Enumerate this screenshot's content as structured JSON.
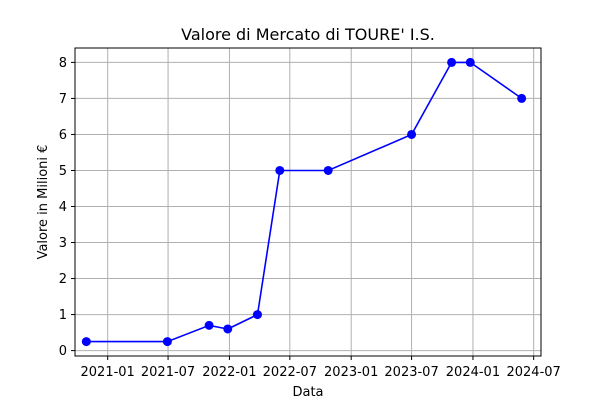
{
  "chart_data": {
    "type": "line",
    "title": "Valore di Mercato di TOURE' I.S.",
    "xlabel": "Data",
    "ylabel": "Valore in Milioni €",
    "grid": true,
    "x_tick_labels": [
      "2021-01",
      "2021-07",
      "2022-01",
      "2022-07",
      "2023-01",
      "2023-07",
      "2024-01",
      "2024-07"
    ],
    "x_tick_dates": [
      "2021-01-01",
      "2021-07-01",
      "2022-01-01",
      "2022-07-01",
      "2023-01-01",
      "2023-07-01",
      "2024-01-01",
      "2024-07-01"
    ],
    "y_ticks": [
      0,
      1,
      2,
      3,
      4,
      5,
      6,
      7,
      8
    ],
    "ylim": [
      -0.15,
      8.4
    ],
    "xlim": [
      "2020-09-25",
      "2024-07-23"
    ],
    "series": [
      {
        "color": "#0000ff",
        "x": [
          "2020-10-29",
          "2021-06-29",
          "2021-11-01",
          "2021-12-27",
          "2022-03-26",
          "2022-06-01",
          "2022-10-24",
          "2023-07-01",
          "2023-10-29",
          "2023-12-24",
          "2024-05-26"
        ],
        "values": [
          0.25,
          0.25,
          0.7,
          0.6,
          1.0,
          5.0,
          5.0,
          6.0,
          8.0,
          8.0,
          7.0
        ]
      }
    ]
  }
}
